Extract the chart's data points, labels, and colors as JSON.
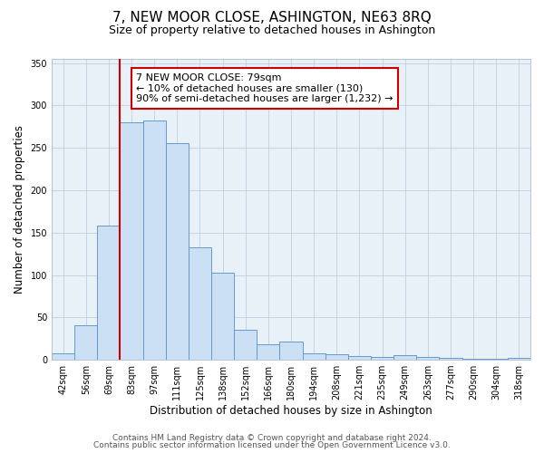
{
  "title": "7, NEW MOOR CLOSE, ASHINGTON, NE63 8RQ",
  "subtitle": "Size of property relative to detached houses in Ashington",
  "xlabel": "Distribution of detached houses by size in Ashington",
  "ylabel": "Number of detached properties",
  "bin_labels": [
    "42sqm",
    "56sqm",
    "69sqm",
    "83sqm",
    "97sqm",
    "111sqm",
    "125sqm",
    "138sqm",
    "152sqm",
    "166sqm",
    "180sqm",
    "194sqm",
    "208sqm",
    "221sqm",
    "235sqm",
    "249sqm",
    "263sqm",
    "277sqm",
    "290sqm",
    "304sqm",
    "318sqm"
  ],
  "bar_heights": [
    8,
    41,
    158,
    280,
    282,
    256,
    133,
    103,
    35,
    18,
    22,
    8,
    7,
    4,
    3,
    5,
    3,
    2,
    1,
    1,
    2
  ],
  "bar_color": "#cce0f5",
  "bar_edge_color": "#6699cc",
  "vline_color": "#cc0000",
  "annotation_text": "7 NEW MOOR CLOSE: 79sqm\n← 10% of detached houses are smaller (130)\n90% of semi-detached houses are larger (1,232) →",
  "annotation_box_color": "#ffffff",
  "annotation_box_edge": "#cc0000",
  "ylim": [
    0,
    355
  ],
  "yticks": [
    0,
    50,
    100,
    150,
    200,
    250,
    300,
    350
  ],
  "footer1": "Contains HM Land Registry data © Crown copyright and database right 2024.",
  "footer2": "Contains public sector information licensed under the Open Government Licence v3.0.",
  "bg_color": "#ffffff",
  "plot_bg_color": "#e8f0f8",
  "title_fontsize": 11,
  "subtitle_fontsize": 9,
  "axis_label_fontsize": 8.5,
  "tick_fontsize": 7,
  "footer_fontsize": 6.5,
  "annotation_fontsize": 8
}
